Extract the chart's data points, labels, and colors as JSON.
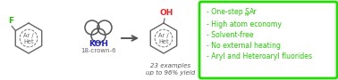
{
  "bg_color": "#ffffff",
  "box_color": "#22dd00",
  "bullet_color": "#22cc00",
  "bullet_lines": [
    "- One-step S",
    "N",
    "Ar",
    "- High atom economy",
    "- Solvent-free",
    "- No external heating",
    "- Aryl and Heteroaryl fluorides"
  ],
  "koh_color": "#2222cc",
  "crown_color": "#555555",
  "arrow_color": "#555555",
  "F_color": "#22bb00",
  "OH_color": "#ee2222",
  "ring_color": "#666666",
  "label_color": "#666666",
  "sub_text_color": "#555555",
  "reagent_text": "18-crown-6",
  "yield_text": "23 examples\nup to 96% yield",
  "fig_width": 3.78,
  "fig_height": 0.9,
  "dpi": 100
}
